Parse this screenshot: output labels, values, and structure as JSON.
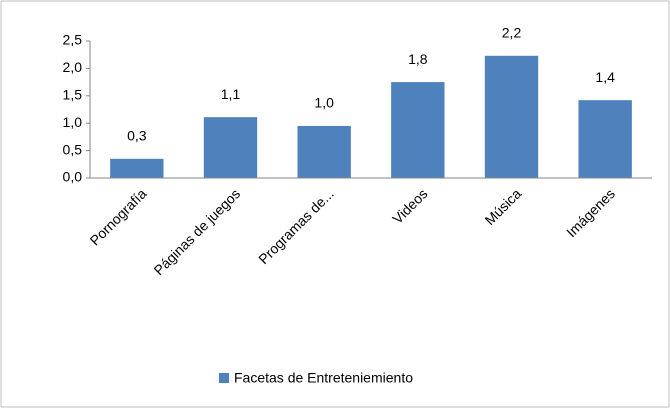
{
  "chart_data": {
    "type": "bar",
    "categories": [
      "Pornografía",
      "Páginas de juegos",
      "Programas de...",
      "Videos",
      "Música",
      "Imágenes"
    ],
    "series": [
      {
        "name": "Facetas de Entreteniemiento",
        "color": "#4f81bd",
        "values": [
          0.35,
          1.11,
          0.95,
          1.75,
          2.23,
          1.42
        ],
        "value_labels": [
          "0,3",
          "1,1",
          "1,0",
          "1,8",
          "2,2",
          "1,4"
        ]
      }
    ],
    "ylim": [
      0,
      2.5
    ],
    "yticks": [
      {
        "value": 0,
        "label": "0,0"
      },
      {
        "value": 0.5,
        "label": "0,5"
      },
      {
        "value": 1,
        "label": "1,0"
      },
      {
        "value": 1.5,
        "label": "1,5"
      },
      {
        "value": 2,
        "label": "2,0"
      },
      {
        "value": 2.5,
        "label": "2,5"
      }
    ],
    "grid": false,
    "legend": "bottom"
  }
}
